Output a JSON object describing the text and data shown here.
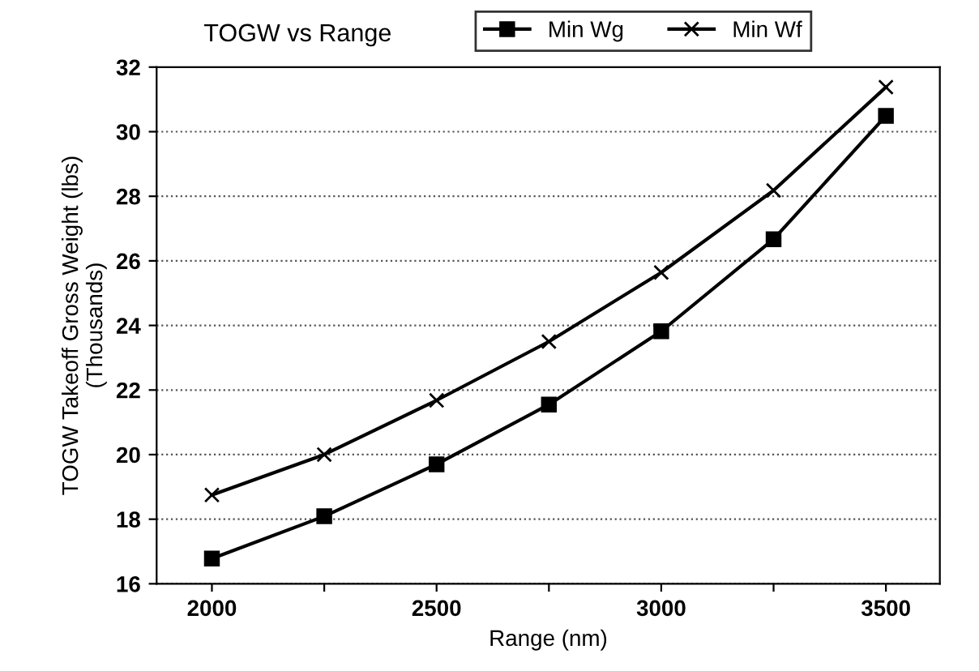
{
  "chart_data": {
    "type": "line",
    "title": "TOGW vs Range",
    "xlabel": "Range (nm)",
    "ylabel": "TOGW Takeoff Gross Weight (lbs)\n(Thousands)",
    "x": [
      2000,
      2250,
      2500,
      2750,
      3000,
      3250,
      3500
    ],
    "series": [
      {
        "name": "Min Wg",
        "color": "#000000",
        "marker": "square",
        "values": [
          16.78,
          18.09,
          19.7,
          21.55,
          23.82,
          26.67,
          30.49
        ]
      },
      {
        "name": "Min Wf",
        "color": "#000000",
        "marker": "cross",
        "values": [
          18.75,
          20.0,
          21.68,
          23.5,
          25.64,
          28.18,
          31.38
        ]
      }
    ],
    "xlim": [
      1877,
      3620
    ],
    "xticks": [
      2000,
      {
        "value": 2250,
        "label": null
      },
      2500,
      {
        "value": 2750,
        "label": null
      },
      3000,
      {
        "value": 3250,
        "label": null
      },
      3500
    ],
    "ylim": [
      16,
      32
    ],
    "yticks": [
      16,
      18,
      20,
      22,
      24,
      26,
      28,
      30,
      32
    ],
    "grid": "y",
    "legend": "top right",
    "line_style": "solid"
  }
}
